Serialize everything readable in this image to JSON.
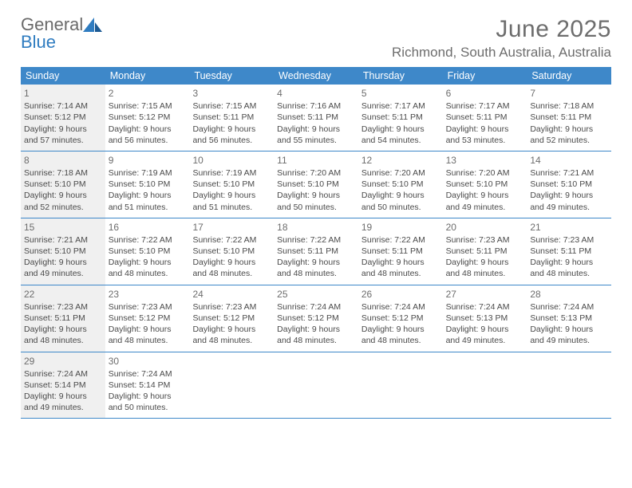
{
  "logo": {
    "line1": "General",
    "line2": "Blue"
  },
  "title": "June 2025",
  "location": "Richmond, South Australia, Australia",
  "colors": {
    "header_bg": "#3e88c9",
    "header_text": "#ffffff",
    "text": "#4a4a4a",
    "muted": "#6d6d6d",
    "shaded_bg": "#f0f0f0",
    "rule": "#3e88c9",
    "logo_blue": "#2f7cc0"
  },
  "day_names": [
    "Sunday",
    "Monday",
    "Tuesday",
    "Wednesday",
    "Thursday",
    "Friday",
    "Saturday"
  ],
  "weeks": [
    [
      {
        "n": "1",
        "shaded": true,
        "sr": "Sunrise: 7:14 AM",
        "ss": "Sunset: 5:12 PM",
        "dl1": "Daylight: 9 hours",
        "dl2": "and 57 minutes."
      },
      {
        "n": "2",
        "sr": "Sunrise: 7:15 AM",
        "ss": "Sunset: 5:12 PM",
        "dl1": "Daylight: 9 hours",
        "dl2": "and 56 minutes."
      },
      {
        "n": "3",
        "sr": "Sunrise: 7:15 AM",
        "ss": "Sunset: 5:11 PM",
        "dl1": "Daylight: 9 hours",
        "dl2": "and 56 minutes."
      },
      {
        "n": "4",
        "sr": "Sunrise: 7:16 AM",
        "ss": "Sunset: 5:11 PM",
        "dl1": "Daylight: 9 hours",
        "dl2": "and 55 minutes."
      },
      {
        "n": "5",
        "sr": "Sunrise: 7:17 AM",
        "ss": "Sunset: 5:11 PM",
        "dl1": "Daylight: 9 hours",
        "dl2": "and 54 minutes."
      },
      {
        "n": "6",
        "sr": "Sunrise: 7:17 AM",
        "ss": "Sunset: 5:11 PM",
        "dl1": "Daylight: 9 hours",
        "dl2": "and 53 minutes."
      },
      {
        "n": "7",
        "sr": "Sunrise: 7:18 AM",
        "ss": "Sunset: 5:11 PM",
        "dl1": "Daylight: 9 hours",
        "dl2": "and 52 minutes."
      }
    ],
    [
      {
        "n": "8",
        "shaded": true,
        "sr": "Sunrise: 7:18 AM",
        "ss": "Sunset: 5:10 PM",
        "dl1": "Daylight: 9 hours",
        "dl2": "and 52 minutes."
      },
      {
        "n": "9",
        "sr": "Sunrise: 7:19 AM",
        "ss": "Sunset: 5:10 PM",
        "dl1": "Daylight: 9 hours",
        "dl2": "and 51 minutes."
      },
      {
        "n": "10",
        "sr": "Sunrise: 7:19 AM",
        "ss": "Sunset: 5:10 PM",
        "dl1": "Daylight: 9 hours",
        "dl2": "and 51 minutes."
      },
      {
        "n": "11",
        "sr": "Sunrise: 7:20 AM",
        "ss": "Sunset: 5:10 PM",
        "dl1": "Daylight: 9 hours",
        "dl2": "and 50 minutes."
      },
      {
        "n": "12",
        "sr": "Sunrise: 7:20 AM",
        "ss": "Sunset: 5:10 PM",
        "dl1": "Daylight: 9 hours",
        "dl2": "and 50 minutes."
      },
      {
        "n": "13",
        "sr": "Sunrise: 7:20 AM",
        "ss": "Sunset: 5:10 PM",
        "dl1": "Daylight: 9 hours",
        "dl2": "and 49 minutes."
      },
      {
        "n": "14",
        "sr": "Sunrise: 7:21 AM",
        "ss": "Sunset: 5:10 PM",
        "dl1": "Daylight: 9 hours",
        "dl2": "and 49 minutes."
      }
    ],
    [
      {
        "n": "15",
        "shaded": true,
        "sr": "Sunrise: 7:21 AM",
        "ss": "Sunset: 5:10 PM",
        "dl1": "Daylight: 9 hours",
        "dl2": "and 49 minutes."
      },
      {
        "n": "16",
        "sr": "Sunrise: 7:22 AM",
        "ss": "Sunset: 5:10 PM",
        "dl1": "Daylight: 9 hours",
        "dl2": "and 48 minutes."
      },
      {
        "n": "17",
        "sr": "Sunrise: 7:22 AM",
        "ss": "Sunset: 5:10 PM",
        "dl1": "Daylight: 9 hours",
        "dl2": "and 48 minutes."
      },
      {
        "n": "18",
        "sr": "Sunrise: 7:22 AM",
        "ss": "Sunset: 5:11 PM",
        "dl1": "Daylight: 9 hours",
        "dl2": "and 48 minutes."
      },
      {
        "n": "19",
        "sr": "Sunrise: 7:22 AM",
        "ss": "Sunset: 5:11 PM",
        "dl1": "Daylight: 9 hours",
        "dl2": "and 48 minutes."
      },
      {
        "n": "20",
        "sr": "Sunrise: 7:23 AM",
        "ss": "Sunset: 5:11 PM",
        "dl1": "Daylight: 9 hours",
        "dl2": "and 48 minutes."
      },
      {
        "n": "21",
        "sr": "Sunrise: 7:23 AM",
        "ss": "Sunset: 5:11 PM",
        "dl1": "Daylight: 9 hours",
        "dl2": "and 48 minutes."
      }
    ],
    [
      {
        "n": "22",
        "shaded": true,
        "sr": "Sunrise: 7:23 AM",
        "ss": "Sunset: 5:11 PM",
        "dl1": "Daylight: 9 hours",
        "dl2": "and 48 minutes."
      },
      {
        "n": "23",
        "sr": "Sunrise: 7:23 AM",
        "ss": "Sunset: 5:12 PM",
        "dl1": "Daylight: 9 hours",
        "dl2": "and 48 minutes."
      },
      {
        "n": "24",
        "sr": "Sunrise: 7:23 AM",
        "ss": "Sunset: 5:12 PM",
        "dl1": "Daylight: 9 hours",
        "dl2": "and 48 minutes."
      },
      {
        "n": "25",
        "sr": "Sunrise: 7:24 AM",
        "ss": "Sunset: 5:12 PM",
        "dl1": "Daylight: 9 hours",
        "dl2": "and 48 minutes."
      },
      {
        "n": "26",
        "sr": "Sunrise: 7:24 AM",
        "ss": "Sunset: 5:12 PM",
        "dl1": "Daylight: 9 hours",
        "dl2": "and 48 minutes."
      },
      {
        "n": "27",
        "sr": "Sunrise: 7:24 AM",
        "ss": "Sunset: 5:13 PM",
        "dl1": "Daylight: 9 hours",
        "dl2": "and 49 minutes."
      },
      {
        "n": "28",
        "sr": "Sunrise: 7:24 AM",
        "ss": "Sunset: 5:13 PM",
        "dl1": "Daylight: 9 hours",
        "dl2": "and 49 minutes."
      }
    ],
    [
      {
        "n": "29",
        "shaded": true,
        "sr": "Sunrise: 7:24 AM",
        "ss": "Sunset: 5:14 PM",
        "dl1": "Daylight: 9 hours",
        "dl2": "and 49 minutes."
      },
      {
        "n": "30",
        "sr": "Sunrise: 7:24 AM",
        "ss": "Sunset: 5:14 PM",
        "dl1": "Daylight: 9 hours",
        "dl2": "and 50 minutes."
      },
      {
        "empty": true
      },
      {
        "empty": true
      },
      {
        "empty": true
      },
      {
        "empty": true
      },
      {
        "empty": true
      }
    ]
  ]
}
